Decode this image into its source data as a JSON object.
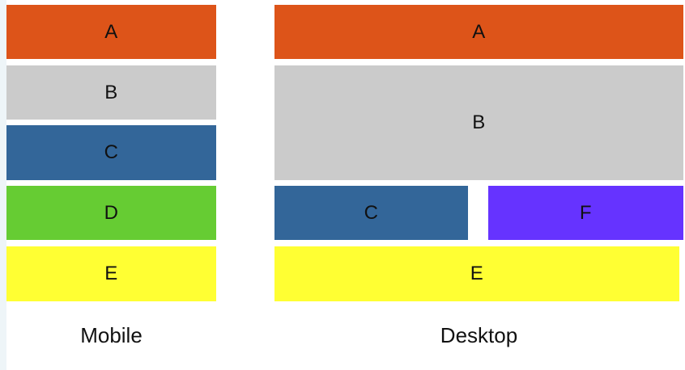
{
  "colors": {
    "A": "#dd5419",
    "B": "#cbcbcb",
    "C": "#336699",
    "D": "#66cc33",
    "E": "#ffff33",
    "F": "#6633ff"
  },
  "mobile": {
    "caption": "Mobile",
    "blocks": [
      {
        "label": "A"
      },
      {
        "label": "B"
      },
      {
        "label": "C"
      },
      {
        "label": "D"
      },
      {
        "label": "E"
      }
    ]
  },
  "desktop": {
    "caption": "Desktop",
    "blocks": [
      {
        "label": "A"
      },
      {
        "label": "B"
      },
      {
        "label": "C"
      },
      {
        "label": "F"
      },
      {
        "label": "E"
      }
    ]
  }
}
